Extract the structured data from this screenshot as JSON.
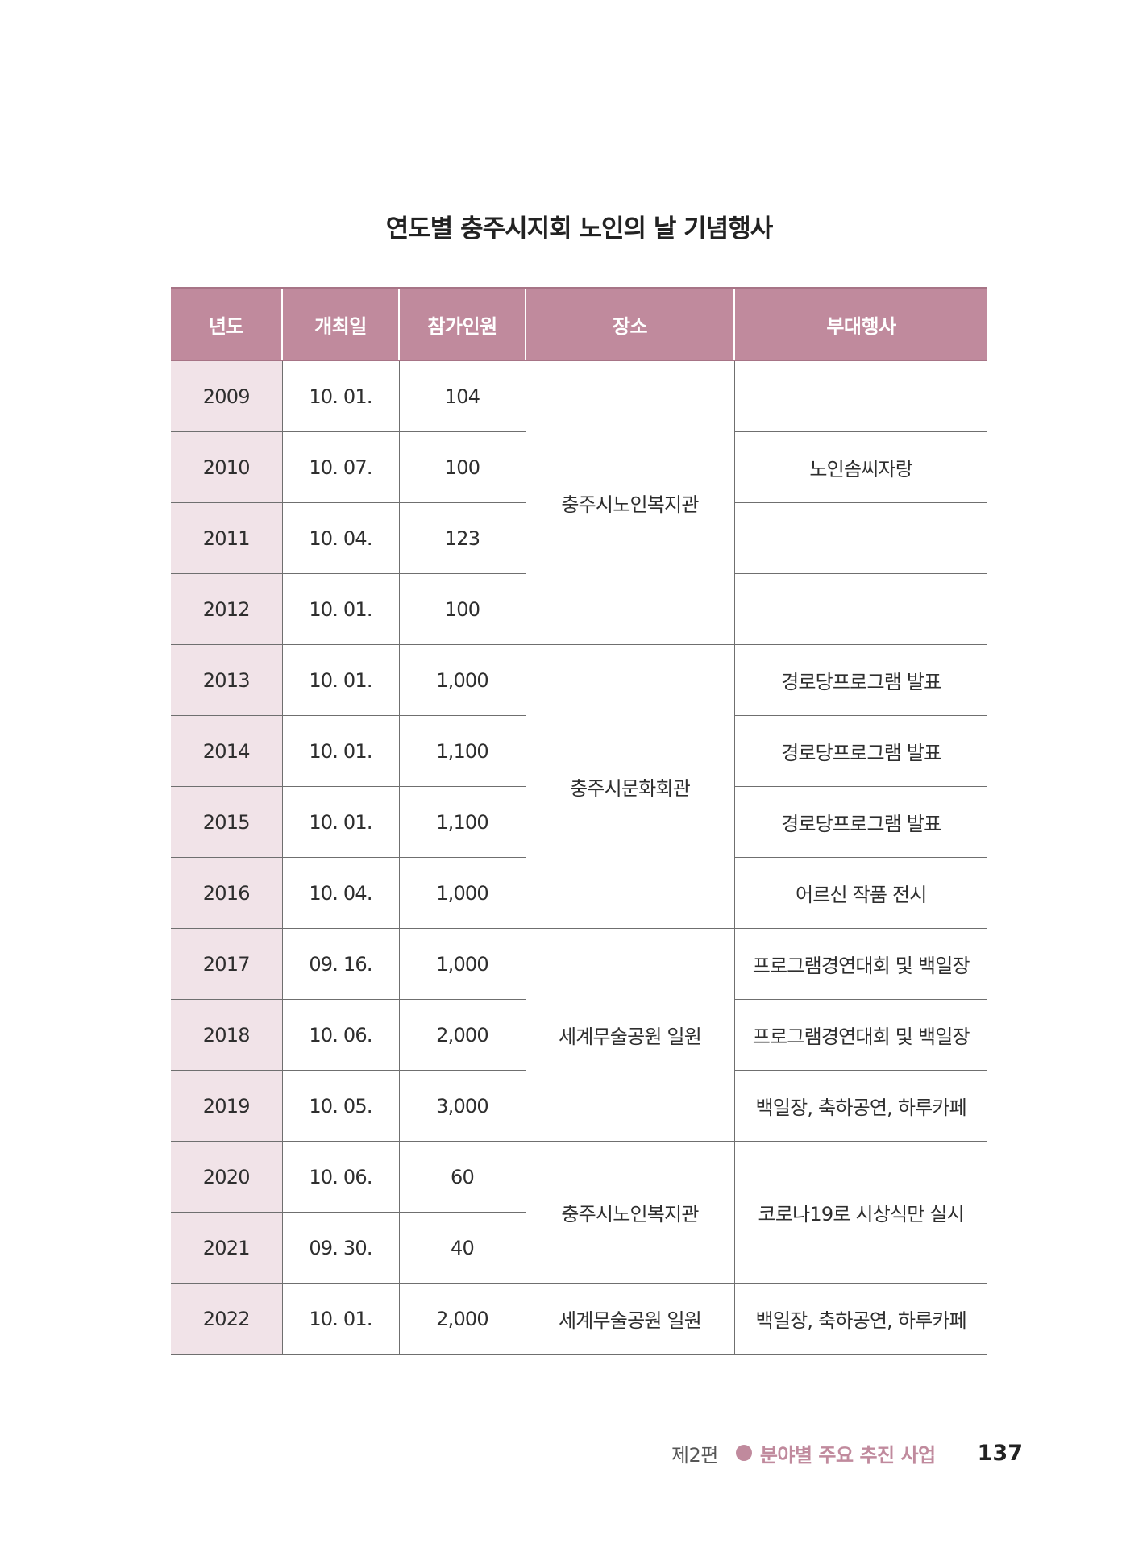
{
  "document": {
    "title": "연도별 충주시지회 노인의 날 기념행사"
  },
  "table": {
    "headers": [
      "년도",
      "개최일",
      "참가인원",
      "장소",
      "부대행사"
    ],
    "rows": [
      {
        "year": "2009",
        "date": "10. 01.",
        "count": "104"
      },
      {
        "year": "2010",
        "date": "10. 07.",
        "count": "100"
      },
      {
        "year": "2011",
        "date": "10. 04.",
        "count": "123"
      },
      {
        "year": "2012",
        "date": "10. 01.",
        "count": "100"
      },
      {
        "year": "2013",
        "date": "10. 01.",
        "count": "1,000"
      },
      {
        "year": "2014",
        "date": "10. 01.",
        "count": "1,100"
      },
      {
        "year": "2015",
        "date": "10. 01.",
        "count": "1,100"
      },
      {
        "year": "2016",
        "date": "10. 04.",
        "count": "1,000"
      },
      {
        "year": "2017",
        "date": "09. 16.",
        "count": "1,000"
      },
      {
        "year": "2018",
        "date": "10. 06.",
        "count": "2,000"
      },
      {
        "year": "2019",
        "date": "10. 05.",
        "count": "3,000"
      },
      {
        "year": "2020",
        "date": "10. 06.",
        "count": "60"
      },
      {
        "year": "2021",
        "date": "09. 30.",
        "count": "40"
      },
      {
        "year": "2022",
        "date": "10. 01.",
        "count": "2,000"
      }
    ],
    "venues": [
      "충주시노인복지관",
      "충주시문화회관",
      "세계무술공원 일원",
      "충주시노인복지관",
      "세계무술공원 일원"
    ],
    "side_events": [
      "",
      "노인솜씨자랑",
      "",
      "",
      "경로당프로그램 발표",
      "경로당프로그램 발표",
      "경로당프로그램 발표",
      "어르신 작품 전시",
      "프로그램경연대회 및 백일장",
      "프로그램경연대회 및 백일장",
      "백일장, 축하공연, 하루카페",
      "코로나19로 시상식만 실시",
      "백일장, 축하공연, 하루카페"
    ]
  },
  "footer": {
    "part": "제2편",
    "section": "분야별 주요 추진 사업",
    "page_number": "137"
  },
  "colors": {
    "header_bg": "#c08a9d",
    "year_column_bg": "#f1e3e8",
    "accent": "#c08a9d"
  }
}
